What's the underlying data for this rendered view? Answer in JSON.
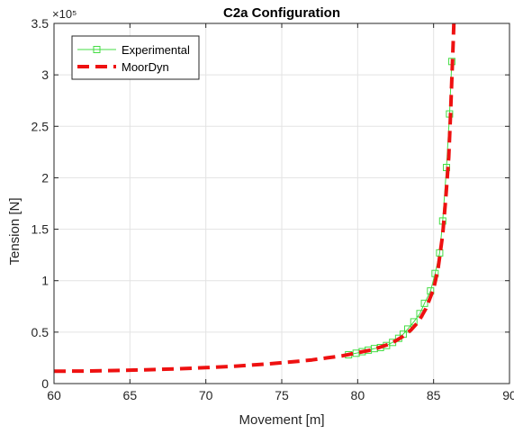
{
  "chart_data": {
    "type": "line",
    "title": "C2a Configuration",
    "xlabel": "Movement [m]",
    "ylabel": "Tension [N]",
    "y_exponent": "×10⁵",
    "xlim": [
      60,
      90
    ],
    "ylim": [
      0,
      350000
    ],
    "grid": true,
    "legend_position": "top-left",
    "xticks": [
      60,
      65,
      70,
      75,
      80,
      85,
      90
    ],
    "xtick_labels": [
      "60",
      "65",
      "70",
      "75",
      "80",
      "85",
      "90"
    ],
    "yticks": [
      0,
      50000,
      100000,
      150000,
      200000,
      250000,
      300000,
      350000
    ],
    "ytick_labels": [
      "0",
      "0.5",
      "1",
      "1.5",
      "2",
      "2.5",
      "3",
      "3.5"
    ],
    "series": [
      {
        "name": "Experimental",
        "color": "#44dd44",
        "marker": "square",
        "style": "solid",
        "x": [
          79.4,
          79.9,
          80.3,
          80.7,
          81.1,
          81.5,
          81.9,
          82.3,
          82.7,
          83.0,
          83.3,
          83.7,
          84.1,
          84.4,
          84.8,
          85.1,
          85.4,
          85.6,
          85.85,
          86.05,
          86.2
        ],
        "y": [
          28000,
          29500,
          31000,
          32500,
          34000,
          35000,
          37000,
          40000,
          44000,
          48000,
          53000,
          60000,
          68000,
          78000,
          90000,
          107000,
          127000,
          158000,
          210000,
          262000,
          313000
        ]
      },
      {
        "name": "MoorDyn",
        "color": "#ee1111",
        "marker": "none",
        "style": "dashed",
        "x": [
          60,
          62,
          64,
          66,
          68,
          70,
          72,
          74,
          76,
          77,
          78,
          79,
          80,
          81,
          82,
          82.5,
          83,
          83.5,
          84,
          84.5,
          85,
          85.3,
          85.6,
          85.8,
          86.0,
          86.1,
          86.2,
          86.3,
          86.35
        ],
        "y": [
          12000,
          12200,
          12700,
          13400,
          14300,
          15500,
          17000,
          19000,
          21500,
          23000,
          25000,
          27000,
          30000,
          33000,
          38000,
          41500,
          46000,
          52000,
          60000,
          73000,
          92000,
          112000,
          145000,
          180000,
          220000,
          255000,
          295000,
          335000,
          355000
        ]
      }
    ]
  }
}
